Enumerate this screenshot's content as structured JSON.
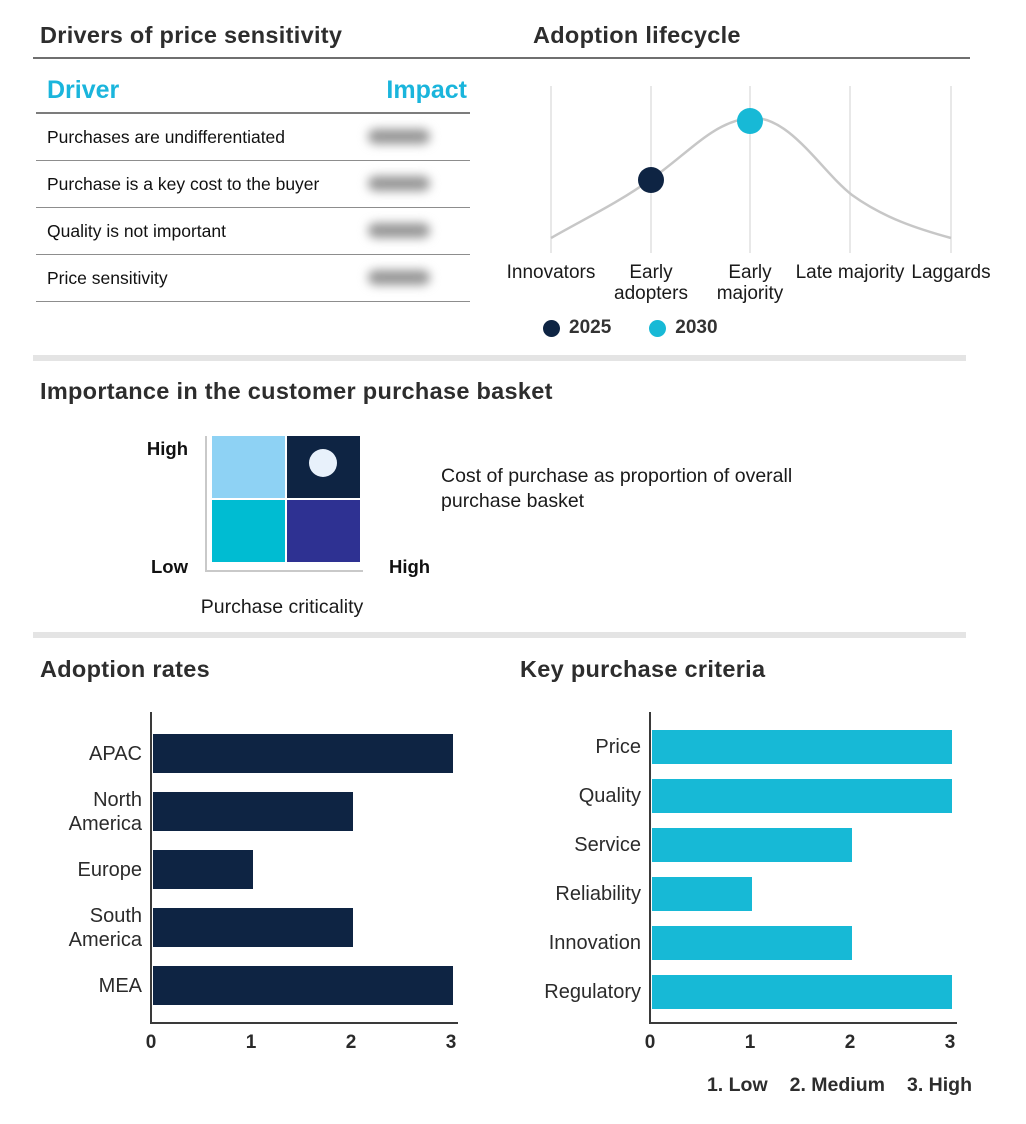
{
  "accent_colors": {
    "navy": "#0e2443",
    "cyan": "#17b9d6",
    "table_header_cyan": "#1ab5dc",
    "light_blue": "#8ed2f4",
    "indigo": "#2e3192",
    "marker_light": "#e8f1fb"
  },
  "chart_data": [
    {
      "type": "table",
      "title": "Drivers of price sensitivity",
      "columns": [
        "Driver",
        "Impact"
      ],
      "rows": [
        "Purchases are undifferentiated",
        "Purchase is a key cost to the buyer",
        "Quality is not important",
        "Price sensitivity"
      ],
      "impact_values_blurred": true
    },
    {
      "type": "line",
      "title": "Adoption lifecycle",
      "curve": "bell-shaped adoption curve",
      "categories": [
        "Innovators",
        "Early adopters",
        "Early majority",
        "Late majority",
        "Laggards"
      ],
      "points": [
        {
          "label": "2025",
          "category": "Early adopters",
          "color": "#0e2443"
        },
        {
          "label": "2030",
          "category": "Early majority",
          "color": "#17b9d6"
        }
      ],
      "legend_position": "bottom",
      "grid": "vertical-only"
    },
    {
      "type": "matrix-2x2",
      "title": "Importance in the customer purchase basket",
      "y_axis": {
        "top_label": "High",
        "bottom_label": "Low"
      },
      "x_axis": {
        "label": "Purchase criticality",
        "right_label": "High"
      },
      "quadrant_colors": {
        "top_left": "#8ed2f4",
        "top_right": "#0e2443",
        "bottom_left": "#00bcd2",
        "bottom_right": "#2e3192"
      },
      "marker": {
        "quadrant": "top_right",
        "color": "#e8f1fb"
      },
      "annotation": "Cost of purchase as proportion of overall purchase basket"
    },
    {
      "type": "bar",
      "orientation": "horizontal",
      "title": "Adoption rates",
      "categories": [
        "APAC",
        "North America",
        "Europe",
        "South America",
        "MEA"
      ],
      "values": [
        3,
        2,
        1,
        2,
        3
      ],
      "xlim": [
        0,
        3
      ],
      "ticks": [
        0,
        1,
        2,
        3
      ],
      "bar_color": "#0e2443"
    },
    {
      "type": "bar",
      "orientation": "horizontal",
      "title": "Key purchase criteria",
      "categories": [
        "Price",
        "Quality",
        "Service",
        "Reliability",
        "Innovation",
        "Regulatory"
      ],
      "values": [
        3,
        3,
        2,
        1,
        2,
        3
      ],
      "xlim": [
        0,
        3
      ],
      "ticks": [
        0,
        1,
        2,
        3
      ],
      "bar_color": "#17b9d6",
      "scale_note": [
        "1. Low",
        "2. Medium",
        "3. High"
      ]
    }
  ]
}
